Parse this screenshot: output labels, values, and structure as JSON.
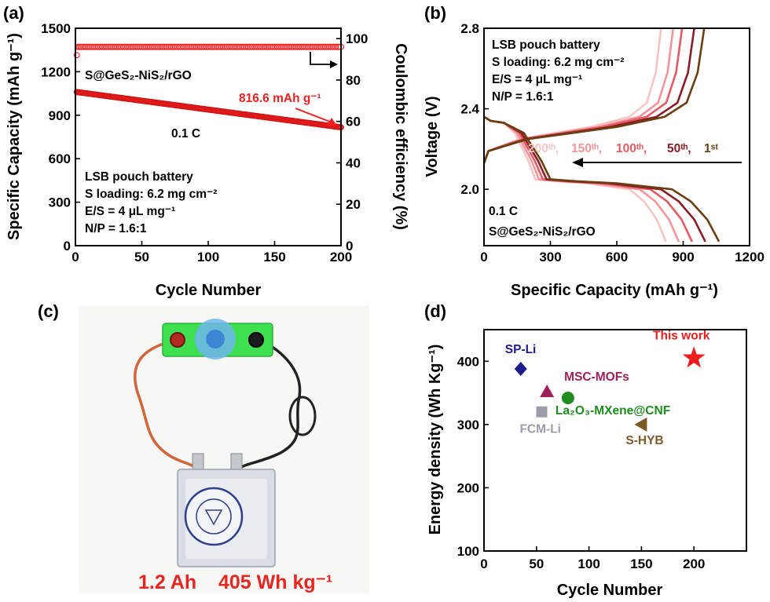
{
  "panels": {
    "a": {
      "label": "(a)",
      "notes": {
        "material": "S@GeS₂-NiS₂/rGO",
        "rate": "0.1 C",
        "callout": "816.6 mAh g⁻¹",
        "info": [
          "LSB pouch battery",
          "S loading: 6.2 mg cm⁻²",
          "E/S = 4 μL mg⁻¹",
          "N/P = 1.6:1"
        ]
      }
    },
    "b": {
      "label": "(b)",
      "notes": {
        "info": [
          "LSB pouch battery",
          "S loading: 6.2 mg cm⁻²",
          "E/S = 4 μL mg⁻¹",
          "N/P = 1.6:1"
        ],
        "rate": "0.1 C",
        "material": "S@GeS₂-NiS₂/rGO",
        "cycle_labels": [
          "200ᵗʰ,",
          "150ᵗʰ,",
          "100ᵗʰ,",
          "50ᵗʰ,",
          "1ˢᵗ"
        ]
      }
    },
    "c": {
      "label": "(c)",
      "caption_capacity": "1.2 Ah",
      "caption_energy": "405 Wh kg⁻¹",
      "colors": {
        "board": "#3fe04f",
        "dome": "#6fb6ee",
        "wire_red": "#d2663a",
        "wire_black": "#222222",
        "pouch": "#d9dde3",
        "caption": "#e8251f"
      }
    },
    "d": {
      "label": "(d)"
    }
  },
  "chart_data": [
    {
      "id": "a",
      "type": "scatter",
      "xlabel": "Cycle Number",
      "ylabel": "Specific Capacity (mAh g⁻¹)",
      "y2label": "Coulombic efficiency (%)",
      "xlim": [
        0,
        200
      ],
      "ylim": [
        0,
        1500
      ],
      "y2lim": [
        0,
        105
      ],
      "xticks": [
        0,
        50,
        100,
        150,
        200
      ],
      "yticks": [
        0,
        300,
        600,
        900,
        1200,
        1500
      ],
      "y2ticks": [
        0,
        20,
        40,
        60,
        80,
        100
      ],
      "series": [
        {
          "axis": "left",
          "color": "#ee2020",
          "marker": "filled-circle",
          "start": 1060,
          "end": 816.6,
          "n_cycles": 200
        },
        {
          "axis": "right",
          "color": "#ee2020",
          "marker": "open-circle",
          "value": 96,
          "first_value": 92,
          "n_cycles": 200
        }
      ]
    },
    {
      "id": "b",
      "type": "line",
      "xlabel": "Specific Capacity (mAh g⁻¹)",
      "ylabel": "Voltage (V)",
      "xlim": [
        0,
        1200
      ],
      "ylim": [
        1.72,
        2.8
      ],
      "xticks": [
        0,
        300,
        600,
        900,
        1200
      ],
      "yticks": [
        2.0,
        2.4,
        2.8
      ],
      "series": [
        {
          "name": "200ᵗʰ",
          "color": "#f6c4c3",
          "discharge_end": 822,
          "charge_end": 800
        },
        {
          "name": "150ᵗʰ",
          "color": "#f3959a",
          "discharge_end": 880,
          "charge_end": 855
        },
        {
          "name": "100ᵗʰ",
          "color": "#e45a63",
          "discharge_end": 940,
          "charge_end": 895
        },
        {
          "name": "50ᵗʰ",
          "color": "#8a1c26",
          "discharge_end": 1000,
          "charge_end": 950
        },
        {
          "name": "1ˢᵗ",
          "color": "#6b3e10",
          "discharge_end": 1062,
          "charge_end": 995
        }
      ]
    },
    {
      "id": "d",
      "type": "scatter",
      "xlabel": "Cycle Number",
      "ylabel": "Energy density (Wh Kg⁻¹)",
      "xlim": [
        0,
        250
      ],
      "ylim": [
        100,
        450
      ],
      "xticks": [
        0,
        50,
        100,
        150,
        200
      ],
      "yticks": [
        100,
        200,
        300,
        400
      ],
      "points": [
        {
          "name": "SP-Li",
          "x": 35,
          "y": 388,
          "marker": "diamond",
          "color": "#1c1c8c"
        },
        {
          "name": "MSC-MOFs",
          "x": 60,
          "y": 352,
          "marker": "triangle",
          "color": "#a0205a"
        },
        {
          "name": "La₂O₃-MXene@CNF",
          "x": 80,
          "y": 342,
          "marker": "circle",
          "color": "#1e8c1e"
        },
        {
          "name": "FCM-Li",
          "x": 55,
          "y": 320,
          "marker": "square",
          "color": "#9c9caa"
        },
        {
          "name": "S-HYB",
          "x": 150,
          "y": 300,
          "marker": "triangle-left",
          "color": "#7c5a28"
        },
        {
          "name": "This work",
          "x": 200,
          "y": 405,
          "marker": "star",
          "color": "#ee1c1c"
        }
      ]
    }
  ]
}
